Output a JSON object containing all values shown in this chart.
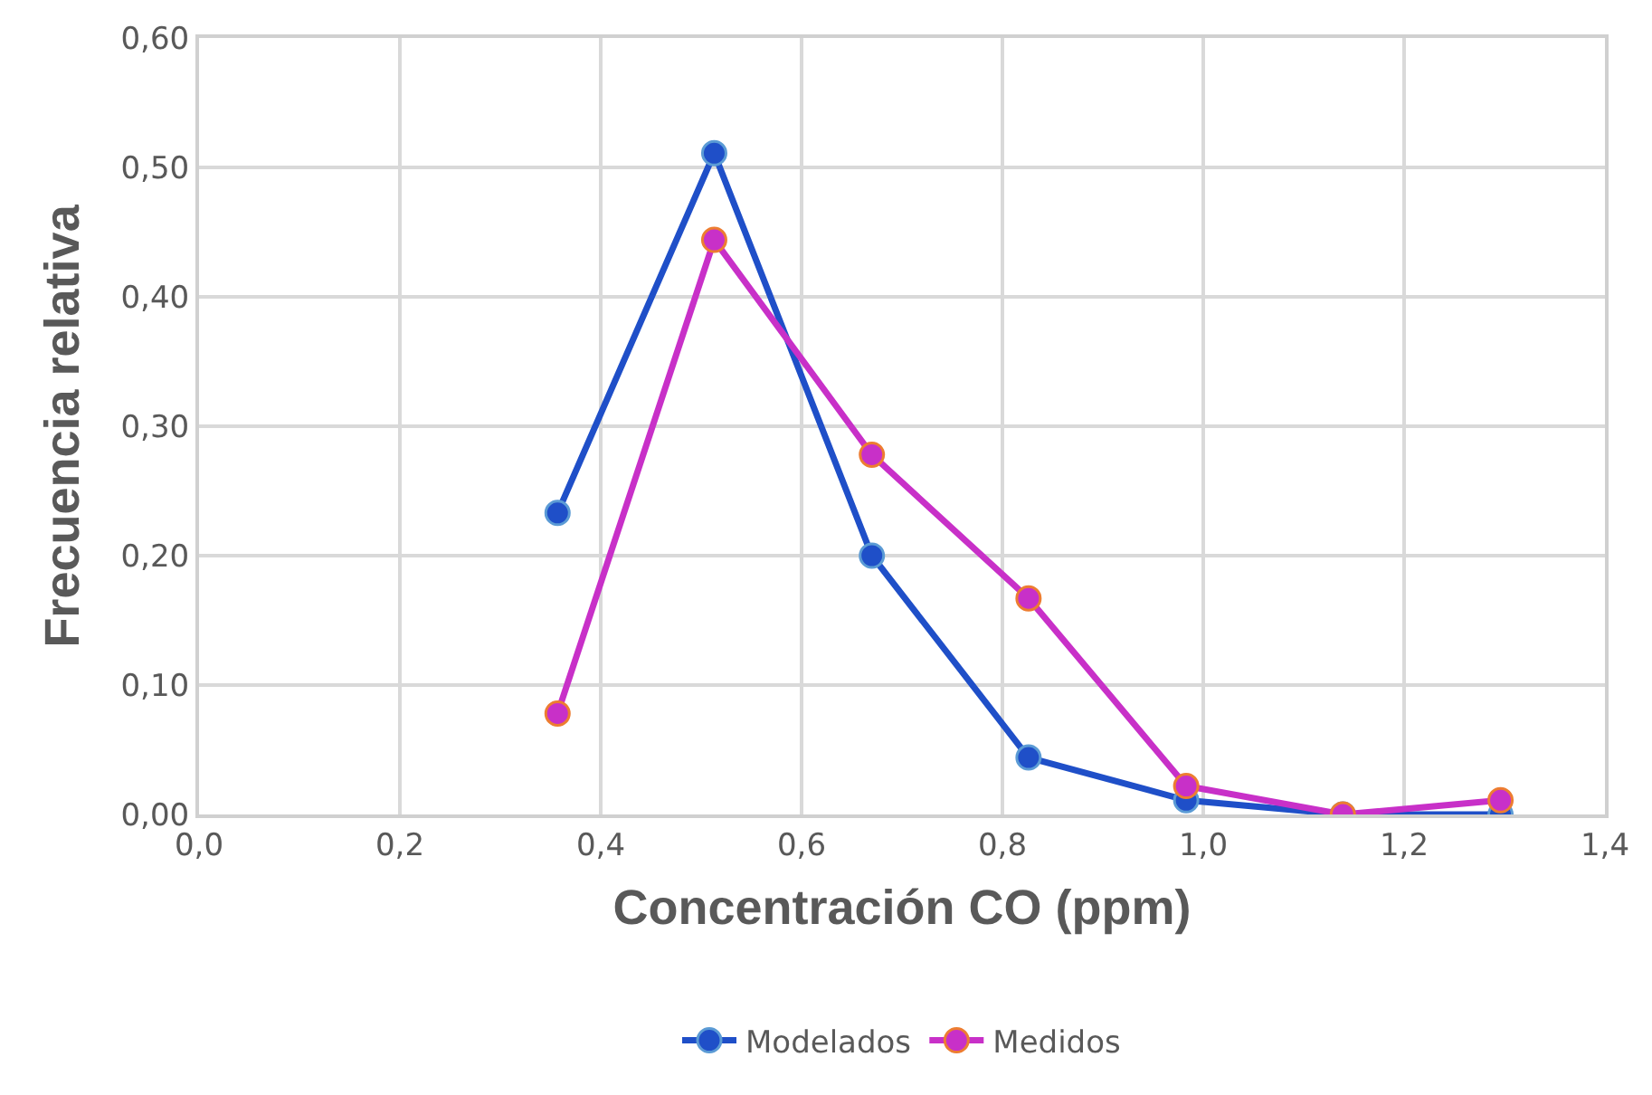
{
  "chart_data": {
    "type": "line",
    "xlabel": "Concentración CO (ppm)",
    "ylabel": "Frecuencia relativa",
    "x": [
      0.357,
      0.513,
      0.67,
      0.826,
      0.983,
      1.139,
      1.296
    ],
    "series": [
      {
        "name": "Modelados",
        "color": "#1f4fc8",
        "values": [
          0.233,
          0.511,
          0.2,
          0.044,
          0.011,
          0.0,
          0.0
        ]
      },
      {
        "name": "Medidos",
        "color": "#c830c8",
        "values": [
          0.078,
          0.444,
          0.278,
          0.167,
          0.022,
          0.0,
          0.011
        ]
      }
    ],
    "xlim": [
      0,
      1.4
    ],
    "xticks": [
      {
        "value": 0,
        "label": "0,0"
      },
      {
        "value": 0.2,
        "label": "0,2"
      },
      {
        "value": 0.4,
        "label": "0,4"
      },
      {
        "value": 0.6,
        "label": "0,6"
      },
      {
        "value": 0.8,
        "label": "0,8"
      },
      {
        "value": 1.0,
        "label": "1,0"
      },
      {
        "value": 1.2,
        "label": "1,2"
      },
      {
        "value": 1.4,
        "label": "1,4"
      }
    ],
    "ylim": [
      0,
      0.6
    ],
    "yticks": [
      {
        "value": 0,
        "label": "0,00"
      },
      {
        "value": 0.1,
        "label": "0,10"
      },
      {
        "value": 0.2,
        "label": "0,20"
      },
      {
        "value": 0.3,
        "label": "0,30"
      },
      {
        "value": 0.4,
        "label": "0,40"
      },
      {
        "value": 0.5,
        "label": "0,50"
      },
      {
        "value": 0.6,
        "label": "0,60"
      }
    ],
    "grid": true,
    "legend": "bottom",
    "marker": "circle",
    "line_style": "solid"
  }
}
